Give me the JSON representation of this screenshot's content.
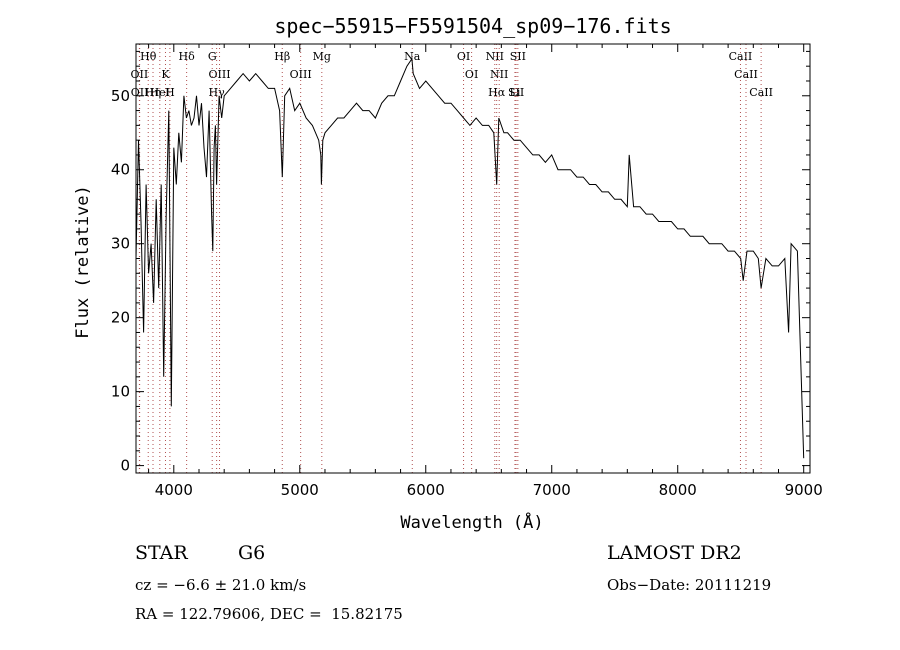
{
  "chart_data": {
    "type": "line",
    "title": "spec−55915−F5591504_sp09−176.fits",
    "xlabel": "Wavelength (Å)",
    "ylabel": "Flux (relative)",
    "xlim": [
      3700,
      9050
    ],
    "ylim": [
      -1,
      57
    ],
    "xticks": [
      4000,
      5000,
      6000,
      7000,
      8000,
      9000
    ],
    "yticks": [
      0,
      10,
      20,
      30,
      40,
      50
    ],
    "grid": false,
    "series": [
      {
        "x": [
          3700,
          3720,
          3740,
          3760,
          3780,
          3800,
          3820,
          3840,
          3860,
          3880,
          3900,
          3920,
          3940,
          3960,
          3980,
          4000,
          4020,
          4040,
          4060,
          4080,
          4100,
          4120,
          4140,
          4160,
          4180,
          4200,
          4220,
          4240,
          4260,
          4280,
          4300,
          4310,
          4320,
          4330,
          4340,
          4360,
          4380,
          4400,
          4450,
          4500,
          4550,
          4600,
          4650,
          4700,
          4750,
          4800,
          4840,
          4861,
          4880,
          4920,
          4960,
          5000,
          5050,
          5100,
          5150,
          5167,
          5172,
          5183,
          5200,
          5250,
          5300,
          5350,
          5400,
          5450,
          5500,
          5550,
          5600,
          5650,
          5700,
          5750,
          5800,
          5850,
          5890,
          5900,
          5950,
          6000,
          6050,
          6100,
          6150,
          6200,
          6250,
          6300,
          6350,
          6400,
          6450,
          6500,
          6540,
          6563,
          6580,
          6620,
          6650,
          6700,
          6750,
          6800,
          6850,
          6900,
          6950,
          7000,
          7050,
          7100,
          7150,
          7200,
          7250,
          7300,
          7350,
          7400,
          7450,
          7500,
          7550,
          7600,
          7615,
          7650,
          7700,
          7750,
          7800,
          7850,
          7900,
          7950,
          8000,
          8050,
          8100,
          8150,
          8200,
          8250,
          8300,
          8350,
          8400,
          8450,
          8500,
          8520,
          8550,
          8600,
          8640,
          8662,
          8700,
          8750,
          8800,
          8850,
          8880,
          8900,
          8950,
          9000
        ],
        "y": [
          28,
          44,
          33,
          18,
          38,
          26,
          30,
          22,
          36,
          24,
          38,
          12,
          34,
          48,
          8,
          43,
          38,
          45,
          41,
          50,
          47,
          48,
          46,
          47,
          50,
          46,
          49,
          43,
          39,
          48,
          34,
          29,
          43,
          46,
          38,
          50,
          47,
          50,
          51,
          52,
          53,
          52,
          53,
          52,
          51,
          51,
          48,
          39,
          50,
          51,
          48,
          49,
          47,
          46,
          44,
          42,
          38,
          44,
          45,
          46,
          47,
          47,
          48,
          49,
          48,
          48,
          47,
          49,
          50,
          50,
          52,
          54,
          55,
          53,
          51,
          52,
          51,
          50,
          49,
          49,
          48,
          47,
          46,
          47,
          46,
          46,
          45,
          38,
          47,
          45,
          45,
          44,
          44,
          43,
          42,
          42,
          41,
          42,
          40,
          40,
          40,
          39,
          39,
          38,
          38,
          37,
          37,
          36,
          36,
          35,
          42,
          35,
          35,
          34,
          34,
          33,
          33,
          33,
          32,
          32,
          31,
          31,
          31,
          30,
          30,
          30,
          29,
          29,
          28,
          25,
          29,
          29,
          28,
          24,
          28,
          27,
          27,
          28,
          18,
          30,
          29,
          1
        ]
      }
    ],
    "lines": [
      {
        "label": "Hθ",
        "wave": 3797
      },
      {
        "label": "OII",
        "wave": 3727
      },
      {
        "label": "OII",
        "wave": 3729
      },
      {
        "label": "K",
        "wave": 3934
      },
      {
        "label": "HeI",
        "wave": 3889
      },
      {
        "label": "Hη",
        "wave": 3835
      },
      {
        "label": "H",
        "wave": 3969
      },
      {
        "label": "Hδ",
        "wave": 4102
      },
      {
        "label": "G",
        "wave": 4305
      },
      {
        "label": "OIII",
        "wave": 4363
      },
      {
        "label": "Hγ",
        "wave": 4340
      },
      {
        "label": "Hβ",
        "wave": 4861
      },
      {
        "label": "OIII",
        "wave": 5007
      },
      {
        "label": "Mg",
        "wave": 5175
      },
      {
        "label": "Na",
        "wave": 5893
      },
      {
        "label": "OI",
        "wave": 6300
      },
      {
        "label": "OI",
        "wave": 6364
      },
      {
        "label": "NII",
        "wave": 6548
      },
      {
        "label": "NII",
        "wave": 6583
      },
      {
        "label": "Hα",
        "wave": 6563
      },
      {
        "label": "Li",
        "wave": 6708
      },
      {
        "label": "SII",
        "wave": 6717
      },
      {
        "label": "SII",
        "wave": 6731
      },
      {
        "label": "CaII",
        "wave": 8498
      },
      {
        "label": "CaII",
        "wave": 8542
      },
      {
        "label": "CaII",
        "wave": 8662
      }
    ]
  },
  "footer": {
    "class_label": "STAR",
    "subclass": "G6",
    "survey": "LAMOST DR2",
    "cz": "cz = −6.6 ± 21.0 km/s",
    "obs_date": "Obs−Date: 20111219",
    "coords": "RA = 122.79606, DEC =  15.82175"
  }
}
